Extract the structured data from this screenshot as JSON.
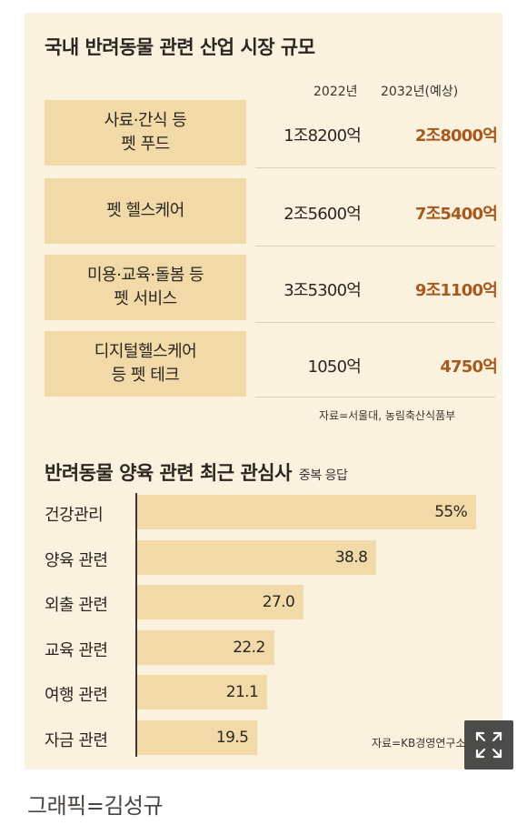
{
  "market": {
    "title": "국내 반려동물 관련 산업 시장 규모",
    "col_2022": "2022년",
    "col_2032": "2032년(예상)",
    "rows": [
      {
        "label": "사료·간식 등\n펫 푸드",
        "v2022": "1조8200억",
        "v2032": "2조8000억"
      },
      {
        "label": "펫 헬스케어",
        "v2022": "2조5600억",
        "v2032": "7조5400억"
      },
      {
        "label": "미용·교육·돌봄 등\n펫 서비스",
        "v2022": "3조5300억",
        "v2032": "9조1100억"
      },
      {
        "label": "디지털헬스케어\n등 펫 테크",
        "v2022": "1050억",
        "v2032": "4750억"
      }
    ],
    "source": "자료=서울대, 농림축산식품부"
  },
  "chart_data": {
    "type": "bar",
    "orientation": "horizontal",
    "title": "반려동물 양육 관련 최근 관심사",
    "subtitle": "중복 응답",
    "categories": [
      "건강관리",
      "양육 관련",
      "외출 관련",
      "교육 관련",
      "여행 관련",
      "자금 관련"
    ],
    "values": [
      55,
      38.8,
      27.0,
      22.2,
      21.1,
      19.5
    ],
    "value_labels": [
      "55%",
      "38.8",
      "27.0",
      "22.2",
      "21.1",
      "19.5"
    ],
    "xlim": [
      0,
      56
    ],
    "grid": false,
    "source": "자료=KB경영연구소",
    "bar_color": "#f2d9a8"
  },
  "credit": "그래픽=김성규",
  "colors": {
    "card_bg": "#fbf1df",
    "label_bg": "#f2d9a8",
    "accent": "#a65a1e"
  }
}
